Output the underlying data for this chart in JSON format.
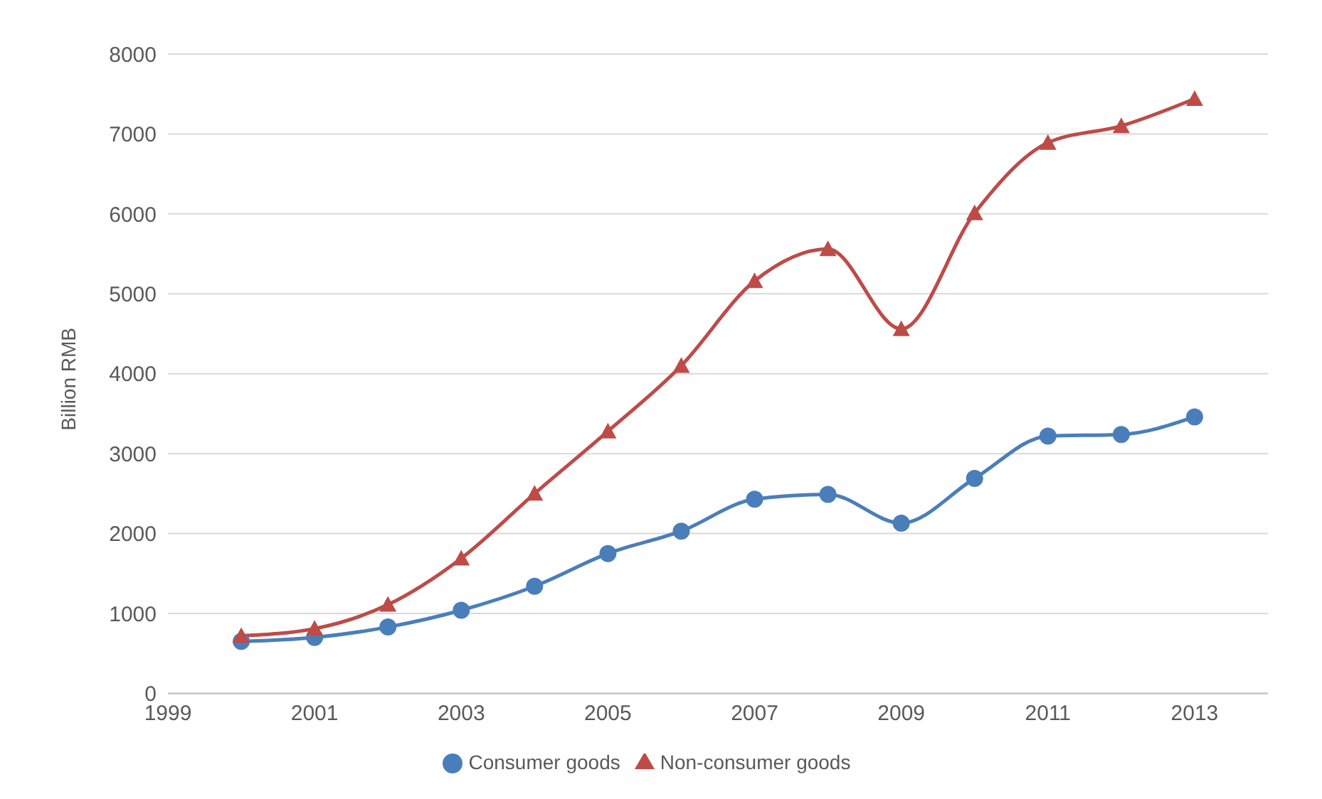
{
  "chart_data": {
    "type": "line",
    "ylabel": "Billion RMB",
    "x": [
      2000,
      2001,
      2002,
      2003,
      2004,
      2005,
      2006,
      2007,
      2008,
      2009,
      2010,
      2011,
      2012,
      2013
    ],
    "series": [
      {
        "name": "Consumer goods",
        "color": "#4a7ebb",
        "marker": "circle",
        "values": [
          650,
          700,
          830,
          1040,
          1340,
          1750,
          2030,
          2430,
          2490,
          2130,
          2690,
          3220,
          3240,
          3460
        ]
      },
      {
        "name": "Non-consumer goods",
        "color": "#be4b48",
        "marker": "triangle",
        "values": [
          720,
          810,
          1110,
          1690,
          2500,
          3280,
          4100,
          5160,
          5560,
          4560,
          6010,
          6890,
          7100,
          7440
        ]
      }
    ],
    "xlim": [
      1999,
      2014
    ],
    "xticks": [
      1999,
      2001,
      2003,
      2005,
      2007,
      2009,
      2011,
      2013
    ],
    "ylim": [
      0,
      8000
    ],
    "yticks": [
      0,
      1000,
      2000,
      3000,
      4000,
      5000,
      6000,
      7000,
      8000
    ],
    "grid": "y",
    "legend": "bottom"
  }
}
